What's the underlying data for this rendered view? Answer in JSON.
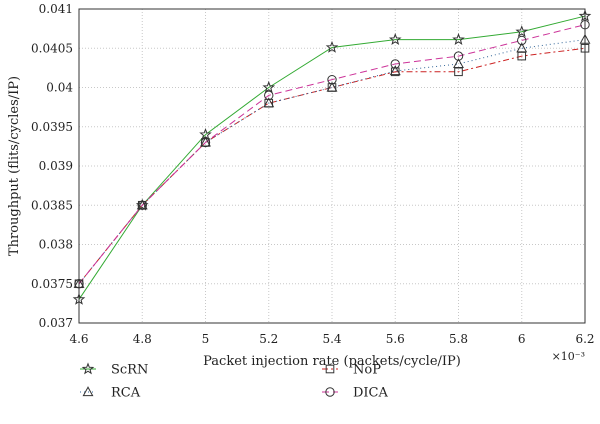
{
  "chart_data": {
    "type": "line",
    "title": "",
    "xlabel": "Packet injection rate (packets/cycle/IP)",
    "ylabel": "Throughput (flits/cycles/IP)",
    "x_multiplier": "×10⁻³",
    "x": [
      4.6,
      4.8,
      5.0,
      5.2,
      5.4,
      5.6,
      5.8,
      6.0,
      6.2
    ],
    "x_tick_labels": [
      "4.6",
      "4.8",
      "5",
      "5.2",
      "5.4",
      "5.6",
      "5.8",
      "6",
      "6.2"
    ],
    "xlim": [
      4.6,
      6.2
    ],
    "ylim": [
      0.037,
      0.041
    ],
    "y_ticks": [
      0.037,
      0.0375,
      0.038,
      0.0385,
      0.039,
      0.0395,
      0.04,
      0.0405,
      0.041
    ],
    "y_tick_labels": [
      "0.037",
      "0.0375",
      "0.038",
      "0.0385",
      "0.039",
      "0.0395",
      "0.04",
      "0.0405",
      "0.041"
    ],
    "grid": true,
    "legend_position": "bottom",
    "series": [
      {
        "name": "ScRN",
        "color": "#33aa33",
        "dash": "",
        "marker": "star",
        "values": [
          0.0373,
          0.0385,
          0.0394,
          0.04,
          0.04051,
          0.04061,
          0.04061,
          0.04071,
          0.04091
        ]
      },
      {
        "name": "NoP",
        "color": "#cc2222",
        "dash": "6,3,2,3",
        "marker": "square",
        "values": [
          0.0375,
          0.0385,
          0.0393,
          0.0398,
          0.04,
          0.0402,
          0.0402,
          0.0404,
          0.0405
        ]
      },
      {
        "name": "RCA",
        "color": "#336699",
        "dash": "1,3",
        "marker": "triangle",
        "values": [
          0.0375,
          0.0385,
          0.0393,
          0.0398,
          0.04,
          0.04021,
          0.0403,
          0.0405,
          0.04061
        ]
      },
      {
        "name": "DICA",
        "color": "#cc3399",
        "dash": "7,4",
        "marker": "circle",
        "values": [
          0.0375,
          0.0385,
          0.0393,
          0.0399,
          0.0401,
          0.0403,
          0.0404,
          0.0406,
          0.0408
        ]
      }
    ]
  }
}
